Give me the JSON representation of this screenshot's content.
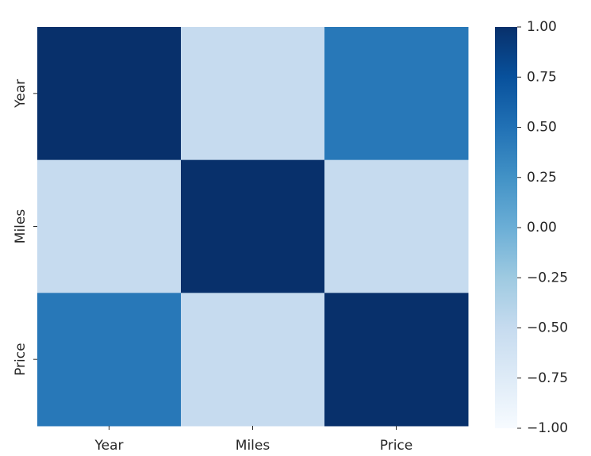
{
  "chart_data": {
    "type": "heatmap",
    "x_labels": [
      "Year",
      "Miles",
      "Price"
    ],
    "y_labels": [
      "Year",
      "Miles",
      "Price"
    ],
    "values": [
      [
        1.0,
        -0.5,
        0.45
      ],
      [
        -0.5,
        1.0,
        -0.5
      ],
      [
        0.45,
        -0.5,
        1.0
      ]
    ],
    "colormap": "Blues",
    "colorbar": {
      "vmin": -1.0,
      "vmax": 1.0,
      "ticks": [
        1.0,
        0.75,
        0.5,
        0.25,
        0.0,
        -0.25,
        -0.5,
        -0.75,
        -1.0
      ],
      "tick_labels": [
        "1.00",
        "0.75",
        "0.50",
        "0.25",
        "0.00",
        "−0.25",
        "−0.50",
        "−0.75",
        "−1.00"
      ]
    }
  }
}
